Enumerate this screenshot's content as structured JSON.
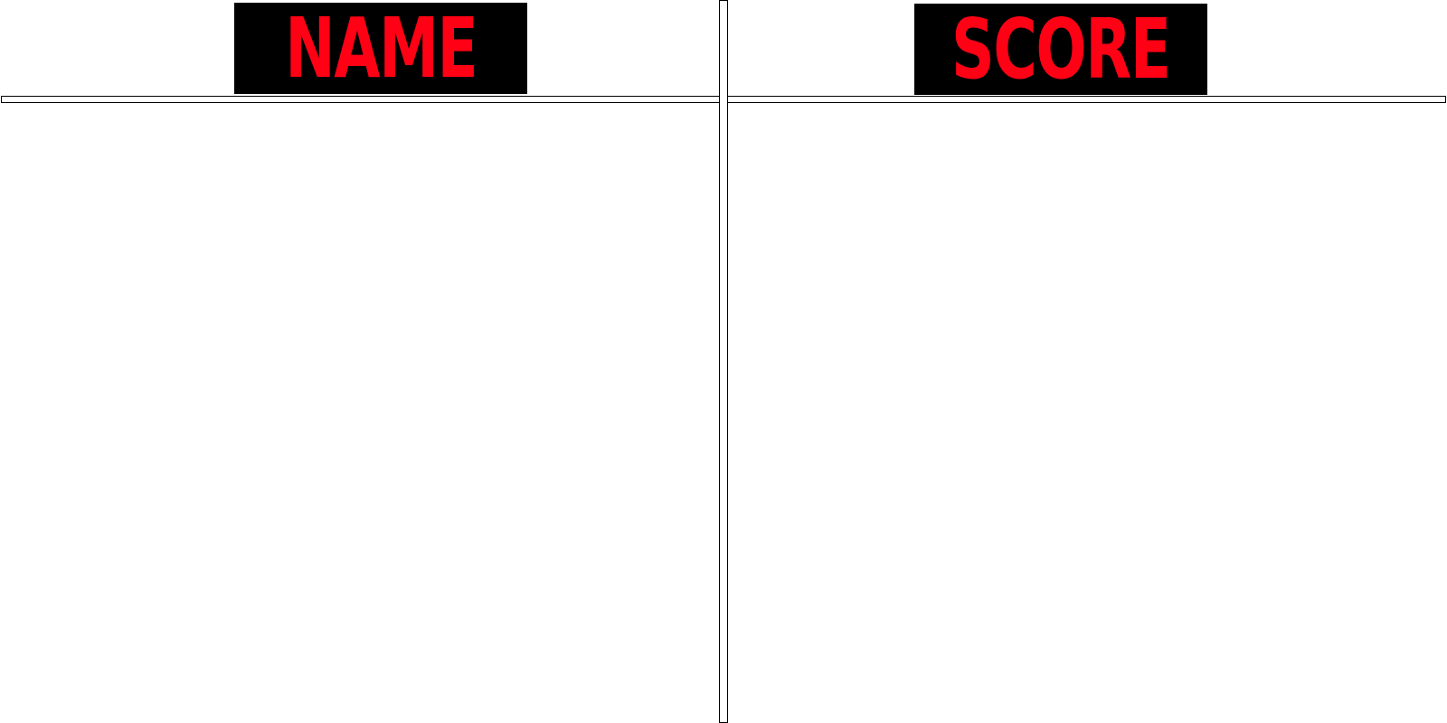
{
  "scoreboard": {
    "name_header": "NAME",
    "score_header": "SCORE",
    "colors": {
      "header_text": "#ff0014",
      "header_background": "#000000",
      "rule": "#000000",
      "background": "#ffffff"
    },
    "entries": []
  }
}
